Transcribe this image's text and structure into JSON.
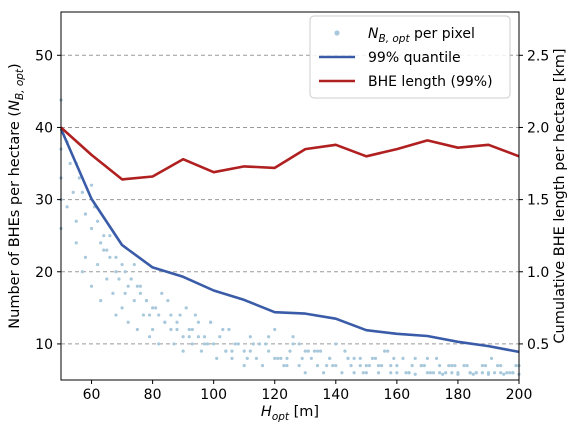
{
  "chart_data": {
    "type": "line",
    "xlabel": "H_opt [m]",
    "xlabel_parts": {
      "base": "H",
      "sub": "opt",
      "unit": " [m]"
    },
    "ylabel": "Number of BHEs per hectare (N_B,opt)",
    "ylabel_parts": {
      "prefix": "Number of BHEs per hectare (",
      "base": "N",
      "sub": "B, opt",
      "suffix": ")"
    },
    "y2label": "Cumulative BHE length per hectare [km]",
    "xlim": [
      50,
      200
    ],
    "ylim": [
      5,
      56
    ],
    "y2lim": [
      0.25,
      2.8
    ],
    "x_ticks": [
      60,
      80,
      100,
      120,
      140,
      160,
      180,
      200
    ],
    "y_ticks": [
      10,
      20,
      30,
      40,
      50
    ],
    "y2_ticks": [
      0.5,
      1.0,
      1.5,
      2.0,
      2.5
    ],
    "y2_tick_labels": [
      "0.5",
      "1.0",
      "1.5",
      "2.0",
      "2.5"
    ],
    "grid": "horizontal-dashed",
    "legend_position": "top-right",
    "series": [
      {
        "name": "N_B,opt per pixel",
        "name_parts": {
          "base": "N",
          "sub": "B, opt",
          "suffix": " per pixel"
        },
        "kind": "scatter",
        "axis": "left",
        "color": "#a8c8dc",
        "x": [
          50,
          50,
          50,
          50,
          50,
          52,
          52,
          53,
          54,
          55,
          55,
          56,
          57,
          58,
          58,
          60,
          60,
          61,
          62,
          63,
          63,
          64,
          65,
          66,
          67,
          68,
          68,
          70,
          70,
          71,
          72,
          73,
          74,
          75,
          75,
          76,
          77,
          78,
          79,
          80,
          80,
          82,
          82,
          84,
          85,
          86,
          87,
          88,
          90,
          90,
          92,
          93,
          94,
          95,
          96,
          98,
          99,
          100,
          101,
          102,
          104,
          105,
          106,
          108,
          110,
          110,
          112,
          114,
          115,
          116,
          118,
          120,
          120,
          122,
          124,
          125,
          126,
          128,
          130,
          130,
          132,
          134,
          135,
          136,
          138,
          140,
          140,
          142,
          144,
          145,
          146,
          148,
          150,
          150,
          152,
          154,
          155,
          156,
          158,
          160,
          160,
          162,
          164,
          165,
          166,
          168,
          170,
          170,
          172,
          174,
          175,
          176,
          178,
          180,
          180,
          182,
          184,
          185,
          186,
          188,
          190,
          190,
          192,
          194,
          195,
          196,
          198,
          200,
          200,
          55,
          60,
          62,
          65,
          68,
          72,
          74,
          78,
          83,
          86,
          88,
          91,
          95,
          97,
          103,
          107,
          112,
          118,
          124,
          128,
          133,
          138,
          143,
          148,
          153,
          158,
          163,
          168,
          173,
          178,
          183,
          188,
          193,
          198,
          57,
          64,
          69,
          76,
          81,
          89,
          93,
          99,
          106,
          113,
          121,
          126,
          131,
          137,
          146,
          151,
          157,
          166,
          171,
          177,
          186,
          191,
          197,
          58,
          66,
          71,
          79,
          84,
          92,
          97,
          104,
          111,
          117,
          123,
          129,
          134,
          139,
          144,
          149,
          154,
          159,
          164,
          169,
          174,
          179,
          184,
          189,
          194,
          199
        ],
        "y": [
          43.8,
          37,
          33,
          30,
          26,
          38,
          29,
          35,
          31,
          27,
          24,
          33,
          20,
          28,
          22,
          26,
          18,
          29,
          21,
          24,
          16,
          23,
          19,
          25,
          17,
          22,
          14,
          21,
          15,
          20,
          13,
          19,
          16,
          18,
          12,
          17,
          14,
          16,
          11,
          15,
          12,
          14,
          10,
          13,
          16,
          12,
          10,
          13,
          11,
          9,
          12,
          10,
          14,
          11,
          9,
          10,
          13,
          10,
          8,
          11,
          9,
          12,
          8,
          10,
          9,
          7,
          11,
          8,
          10,
          7,
          9,
          8,
          12,
          8,
          7,
          9,
          10,
          7,
          9,
          6,
          8,
          7,
          9,
          6,
          8,
          7,
          10,
          6,
          8,
          7,
          6,
          8,
          7,
          6,
          8,
          6,
          7,
          9,
          6,
          7,
          6,
          8,
          6,
          7,
          5.8,
          7,
          6,
          8,
          6,
          7,
          5.8,
          6,
          7,
          6,
          5.8,
          7,
          6,
          5.8,
          6,
          7,
          6,
          5.8,
          6,
          7,
          5.8,
          6,
          6,
          5.8,
          7,
          35,
          32,
          27,
          23,
          20,
          18,
          21,
          16,
          17,
          14,
          12,
          15,
          13,
          11,
          12,
          10,
          9,
          11,
          8,
          10,
          9,
          8,
          9,
          7,
          8,
          7,
          6,
          7,
          8,
          6,
          7,
          6,
          7,
          6,
          31,
          25,
          19,
          18,
          15,
          14,
          12,
          13,
          9,
          10,
          8,
          11,
          9,
          7,
          8,
          7,
          9,
          8,
          6,
          7,
          6,
          8,
          6,
          28,
          22,
          17,
          14,
          13,
          11,
          10,
          9,
          8,
          10,
          7,
          8,
          9,
          7,
          8,
          6,
          7,
          8,
          6,
          7,
          6,
          7,
          6,
          7,
          6,
          7
        ]
      },
      {
        "name": "99% quantile",
        "kind": "line",
        "axis": "left",
        "color": "#3a5ca8",
        "x": [
          50,
          60,
          70,
          80,
          90,
          100,
          110,
          120,
          130,
          140,
          150,
          160,
          170,
          180,
          190,
          200
        ],
        "y": [
          39.8,
          30.1,
          23.7,
          20.6,
          19.3,
          17.4,
          16.1,
          14.4,
          14.2,
          13.5,
          11.9,
          11.4,
          11.1,
          10.3,
          9.7,
          8.9
        ]
      },
      {
        "name": "BHE length (99%)",
        "kind": "line",
        "axis": "right",
        "color": "#b02020",
        "x": [
          50,
          60,
          70,
          80,
          90,
          100,
          110,
          120,
          130,
          140,
          150,
          160,
          170,
          180,
          190,
          200
        ],
        "y": [
          2.0,
          1.81,
          1.64,
          1.66,
          1.78,
          1.69,
          1.73,
          1.72,
          1.85,
          1.88,
          1.8,
          1.85,
          1.91,
          1.86,
          1.88,
          1.8
        ]
      }
    ]
  }
}
